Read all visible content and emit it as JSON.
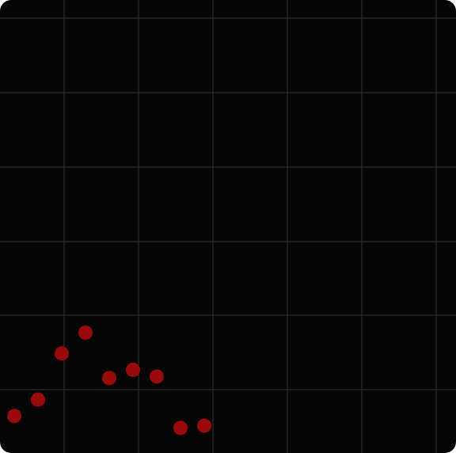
{
  "chart_data": {
    "type": "scatter",
    "title": "",
    "xlabel": "",
    "ylabel": "",
    "grid": true,
    "x": [
      0,
      1,
      2,
      3,
      4,
      5,
      6,
      7,
      8,
      9
    ],
    "y": [
      5.5,
      7.7,
      13.9,
      16.7,
      10.6,
      11.7,
      10.8,
      3.9,
      4.2,
      null
    ],
    "xlim": [
      -0.6,
      18.6
    ],
    "ylim": [
      0,
      60
    ],
    "colors": {
      "background": "#050505",
      "grid": "#333333",
      "point": "#9b0a0a"
    }
  }
}
